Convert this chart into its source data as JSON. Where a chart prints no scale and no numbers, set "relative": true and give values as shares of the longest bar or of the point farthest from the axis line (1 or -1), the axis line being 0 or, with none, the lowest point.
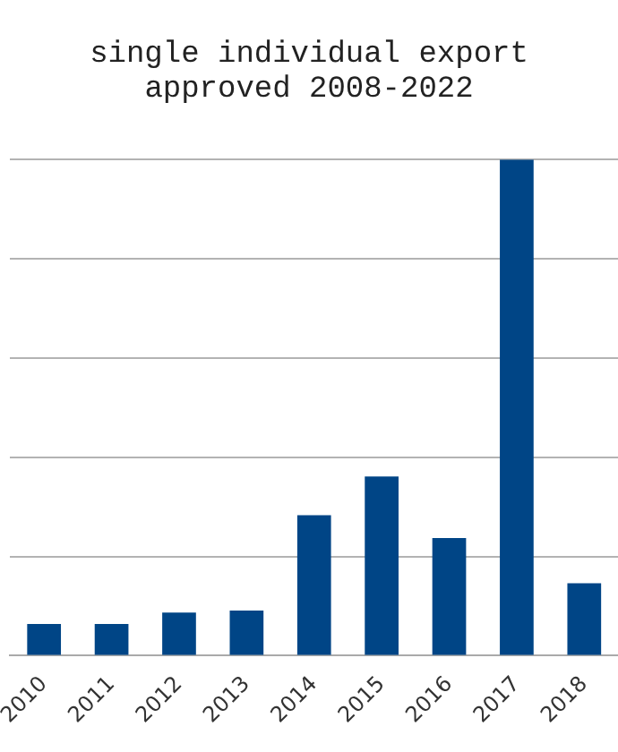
{
  "chart_data": {
    "type": "bar",
    "title": "single individual export\napproved 2008-2022",
    "categories": [
      "2010",
      "2011",
      "2012",
      "2013",
      "2014",
      "2015",
      "2016",
      "2017",
      "2018"
    ],
    "values": [
      0.064,
      0.064,
      0.087,
      0.091,
      0.283,
      0.361,
      0.237,
      1,
      0.146
    ],
    "color": "#004586",
    "relative": true,
    "grid": "y"
  }
}
